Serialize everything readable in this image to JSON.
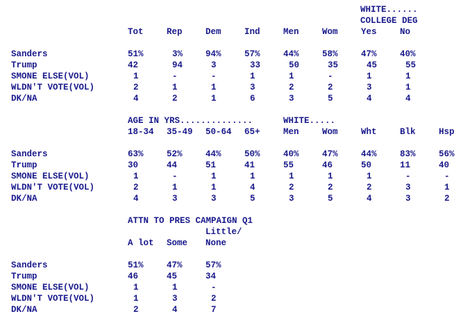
{
  "table1": {
    "group_header_line1": "WHITE......",
    "group_header_line2": "COLLEGE DEG",
    "columns": [
      "Tot",
      "Rep",
      "Dem",
      "Ind",
      "Men",
      "Wom",
      "Yes",
      "No"
    ],
    "rows": [
      {
        "label": "Sanders",
        "values": [
          "51%",
          "3%",
          "94%",
          "57%",
          "44%",
          "58%",
          "47%",
          "40%"
        ]
      },
      {
        "label": "Trump",
        "values": [
          "42",
          "94",
          "3",
          "33",
          "50",
          "35",
          "45",
          "55"
        ]
      },
      {
        "label": "SMONE ELSE(VOL)",
        "values": [
          "1",
          "-",
          "-",
          "1",
          "1",
          "-",
          "1",
          "1"
        ]
      },
      {
        "label": "WLDN'T VOTE(VOL)",
        "values": [
          "2",
          "1",
          "1",
          "3",
          "2",
          "2",
          "3",
          "1"
        ]
      },
      {
        "label": "DK/NA",
        "values": [
          "4",
          "2",
          "1",
          "6",
          "3",
          "5",
          "4",
          "4"
        ]
      }
    ]
  },
  "table2": {
    "group_header_age": "AGE IN YRS..............",
    "group_header_white": "WHITE.....",
    "columns": [
      "18-34",
      "35-49",
      "50-64",
      "65+",
      "Men",
      "Wom",
      "Wht",
      "Blk",
      "Hsp"
    ],
    "rows": [
      {
        "label": "Sanders",
        "values": [
          "63%",
          "52%",
          "44%",
          "50%",
          "40%",
          "47%",
          "44%",
          "83%",
          "56%"
        ]
      },
      {
        "label": "Trump",
        "values": [
          "30",
          "44",
          "51",
          "41",
          "55",
          "46",
          "50",
          "11",
          "40"
        ]
      },
      {
        "label": "SMONE ELSE(VOL)",
        "values": [
          "1",
          "-",
          "1",
          "1",
          "1",
          "1",
          "1",
          "-",
          "-"
        ]
      },
      {
        "label": "WLDN'T VOTE(VOL)",
        "values": [
          "2",
          "1",
          "1",
          "4",
          "2",
          "2",
          "2",
          "3",
          "1"
        ]
      },
      {
        "label": "DK/NA",
        "values": [
          "4",
          "3",
          "3",
          "5",
          "3",
          "5",
          "4",
          "3",
          "2"
        ]
      }
    ]
  },
  "table3": {
    "group_header": "ATTN TO PRES CAMPAIGN Q1",
    "column3_top": "Little/",
    "columns": [
      "A lot",
      "Some",
      "None"
    ],
    "rows": [
      {
        "label": "Sanders",
        "values": [
          "51%",
          "47%",
          "57%"
        ]
      },
      {
        "label": "Trump",
        "values": [
          "46",
          "45",
          "34"
        ]
      },
      {
        "label": "SMONE ELSE(VOL)",
        "values": [
          "1",
          "1",
          "-"
        ]
      },
      {
        "label": "WLDN'T VOTE(VOL)",
        "values": [
          "1",
          "3",
          "2"
        ]
      },
      {
        "label": "DK/NA",
        "values": [
          "2",
          "4",
          "7"
        ]
      }
    ]
  }
}
